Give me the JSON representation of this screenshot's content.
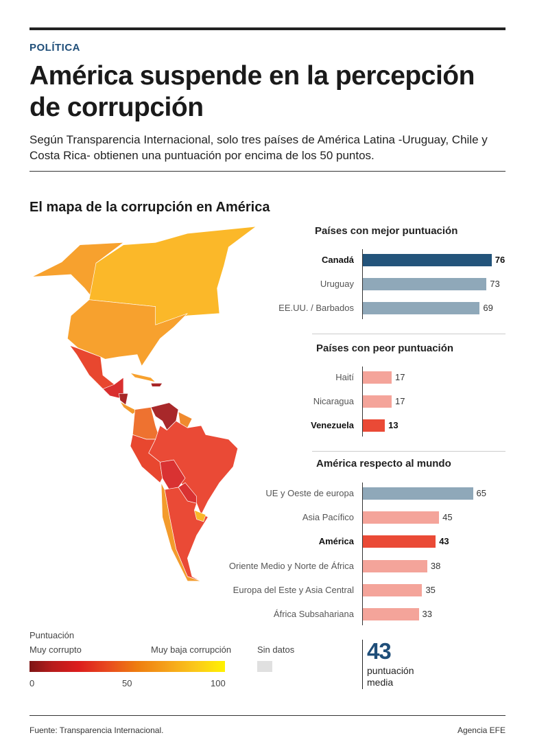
{
  "header": {
    "kicker": "POLÍTICA",
    "title": "América suspende en la percepción de corrupción",
    "subtitle": "Según Transparencia Internacional, solo tres países de América Latina -Uruguay, Chile y Costa Rica- obtienen una puntuación por encima de los 50 puntos."
  },
  "map": {
    "title": "El mapa de la corrupción en América",
    "colors": {
      "canada": "#fbb829",
      "usa": "#f7a12e",
      "alaska": "#f7a12e",
      "mexico": "#e8472f",
      "central_america": "#d92f2f",
      "nicaragua": "#a82626",
      "venezuela": "#a8282a",
      "colombia": "#ee7230",
      "guyanas": "#f08a2e",
      "brazil": "#ea4a36",
      "andes": "#e8472f",
      "bolivia": "#d93232",
      "paraguay": "#d93232",
      "argentina": "#ea4a36",
      "chile": "#f39b2c",
      "uruguay": "#f9b72a"
    }
  },
  "chart_data": [
    {
      "type": "bar",
      "title": "Países con mejor puntuación",
      "categories": [
        "Canadá",
        "Uruguay",
        "EE.UU. / Barbados"
      ],
      "values": [
        76,
        73,
        69
      ],
      "highlight": [
        true,
        false,
        false
      ],
      "colors": [
        "#23547b",
        "#8fa8b9",
        "#8fa8b9"
      ]
    },
    {
      "type": "bar",
      "title": "Países con peor puntuación",
      "categories": [
        "Haití",
        "Nicaragua",
        "Venezuela"
      ],
      "values": [
        17,
        17,
        13
      ],
      "highlight": [
        false,
        false,
        true
      ],
      "colors": [
        "#f4a49a",
        "#f4a49a",
        "#ea4a36"
      ]
    },
    {
      "type": "bar",
      "title": "América respecto al mundo",
      "categories": [
        "UE y Oeste de europa",
        "Asia Pacífico",
        "América",
        "Oriente Medio y Norte de África",
        "Europa del Este y Asia Central",
        "África Subsahariana"
      ],
      "values": [
        65,
        45,
        43,
        38,
        35,
        33
      ],
      "highlight": [
        false,
        false,
        true,
        false,
        false,
        false
      ],
      "colors": [
        "#8fa8b9",
        "#f4a49a",
        "#ea4a36",
        "#f4a49a",
        "#f4a49a",
        "#f4a49a"
      ]
    }
  ],
  "legend": {
    "title": "Puntuación",
    "low_label": "Muy corrupto",
    "high_label": "Muy baja corrupción",
    "ticks": [
      "0",
      "50",
      "100"
    ],
    "no_data": "Sin datos"
  },
  "average": {
    "value": "43",
    "label_line1": "puntuación",
    "label_line2": "media"
  },
  "footer": {
    "source": "Fuente: Transparencia Internacional.",
    "credit": "Agencia EFE"
  }
}
